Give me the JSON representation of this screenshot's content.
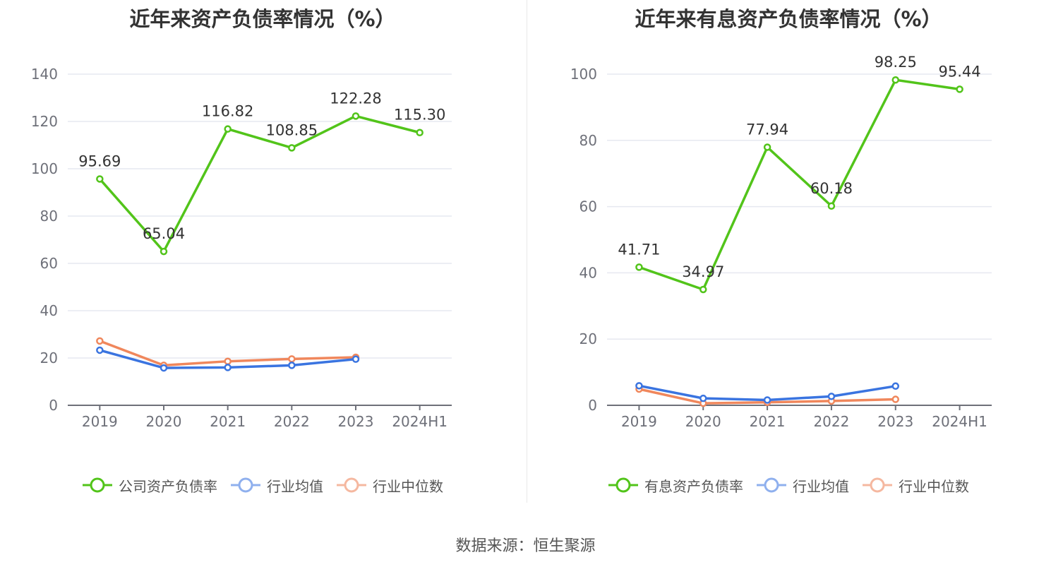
{
  "colors": {
    "company": "#52c41a",
    "industry_avg": "#3a74e0",
    "industry_median": "#f0875c",
    "legend_avg": "#8fb0ee",
    "legend_median": "#f5b8a0",
    "grid": "#e6e8f0",
    "axis": "#6e7079",
    "text": "#333333"
  },
  "source": "数据来源：恒生聚源",
  "chart_data": [
    {
      "type": "line",
      "title": "近年来资产负债率情况（%）",
      "categories": [
        "2019",
        "2020",
        "2021",
        "2022",
        "2023",
        "2024H1"
      ],
      "ylim": [
        0,
        140
      ],
      "yticks": [
        0,
        20,
        40,
        60,
        80,
        100,
        120,
        140
      ],
      "grid": true,
      "legend_position": "bottom",
      "series": [
        {
          "name": "公司资产负债率",
          "values": [
            95.69,
            65.04,
            116.82,
            108.85,
            122.28,
            115.3
          ],
          "labels": [
            "95.69",
            "65.04",
            "116.82",
            "108.85",
            "122.28",
            "115.30"
          ],
          "color": "#52c41a"
        },
        {
          "name": "行业均值",
          "values": [
            23.3,
            15.8,
            16.0,
            16.9,
            19.5,
            null
          ],
          "color": "#3a74e0"
        },
        {
          "name": "行业中位数",
          "values": [
            27.2,
            16.9,
            18.6,
            19.6,
            20.3,
            null
          ],
          "color": "#f0875c"
        }
      ]
    },
    {
      "type": "line",
      "title": "近年来有息资产负债率情况（%）",
      "categories": [
        "2019",
        "2020",
        "2021",
        "2022",
        "2023",
        "2024H1"
      ],
      "ylim": [
        0,
        100
      ],
      "yticks": [
        0,
        20,
        40,
        60,
        80,
        100
      ],
      "grid": true,
      "legend_position": "bottom",
      "series": [
        {
          "name": "有息资产负债率",
          "values": [
            41.71,
            34.97,
            77.94,
            60.18,
            98.25,
            95.44
          ],
          "labels": [
            "41.71",
            "34.97",
            "77.94",
            "60.18",
            "98.25",
            "95.44"
          ],
          "color": "#52c41a"
        },
        {
          "name": "行业均值",
          "values": [
            5.9,
            2.1,
            1.6,
            2.7,
            5.8,
            null
          ],
          "color": "#3a74e0"
        },
        {
          "name": "行业中位数",
          "values": [
            4.9,
            0.6,
            0.9,
            1.3,
            1.8,
            null
          ],
          "color": "#f0875c"
        }
      ]
    }
  ]
}
